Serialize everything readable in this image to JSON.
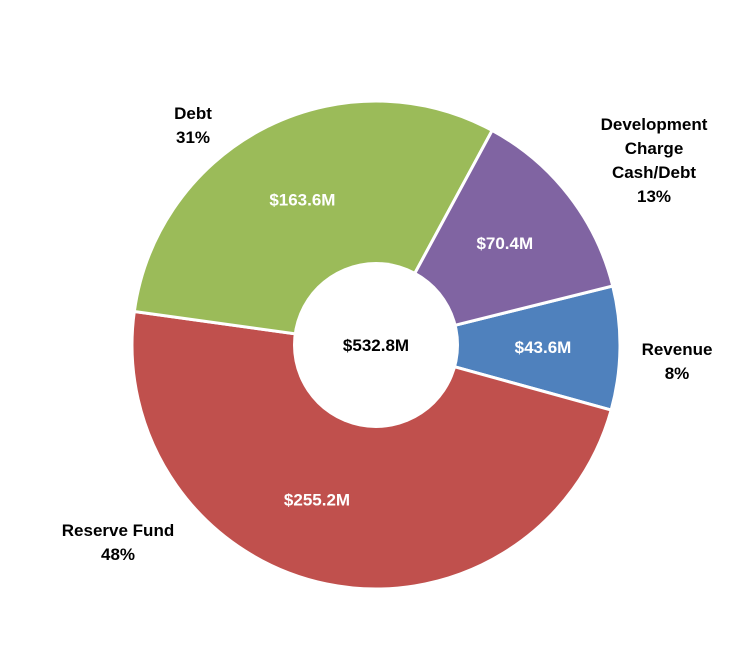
{
  "chart_data": {
    "type": "pie",
    "variant": "donut",
    "total_label": "$532.8M",
    "slices": [
      {
        "name": "Revenue",
        "value": 43.6,
        "value_label": "$43.6M",
        "percent_label": "8%",
        "name_lines": [
          "Revenue"
        ],
        "color": "#4F81BD"
      },
      {
        "name": "Reserve Fund",
        "value": 255.2,
        "value_label": "$255.2M",
        "percent_label": "48%",
        "name_lines": [
          "Reserve Fund"
        ],
        "color": "#C0504D"
      },
      {
        "name": "Debt",
        "value": 163.6,
        "value_label": "$163.6M",
        "percent_label": "31%",
        "name_lines": [
          "Debt"
        ],
        "color": "#9BBB59"
      },
      {
        "name": "Development Charge Cash/Debt",
        "value": 70.4,
        "value_label": "$70.4M",
        "percent_label": "13%",
        "name_lines": [
          "Development",
          "Charge",
          "Cash/Debt"
        ],
        "color": "#8064A2"
      }
    ]
  }
}
